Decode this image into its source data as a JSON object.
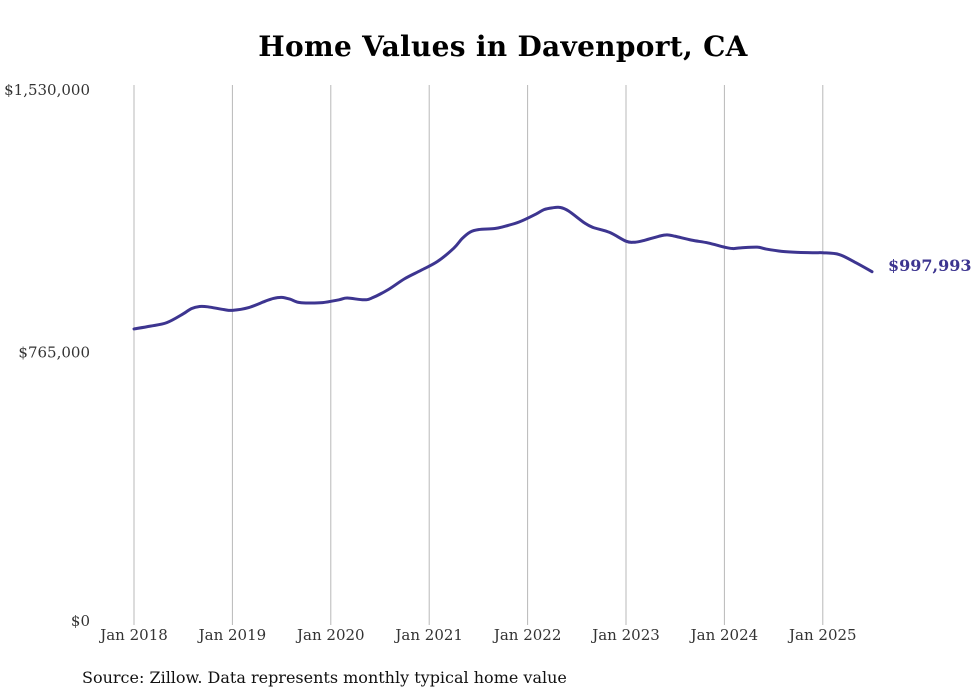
{
  "title": "Home Values in Davenport, CA",
  "source": "Source: Zillow. Data represents monthly typical home value",
  "colors": {
    "line": "#3d3590",
    "grid": "#b8b8b8",
    "text": "#333333"
  },
  "chart_data": {
    "type": "line",
    "title": "Home Values in Davenport, CA",
    "xlabel": "",
    "ylabel": "",
    "ylim": [
      0,
      1530000
    ],
    "grid": "vertical",
    "y_ticks": [
      {
        "value": 1530000,
        "label": "$1,530,000"
      },
      {
        "value": 765000,
        "label": "$765,000"
      },
      {
        "value": 0,
        "label": "$0"
      }
    ],
    "x_ticks": [
      {
        "date": "2018-01",
        "label": "Jan 2018"
      },
      {
        "date": "2019-01",
        "label": "Jan 2019"
      },
      {
        "date": "2020-01",
        "label": "Jan 2020"
      },
      {
        "date": "2021-01",
        "label": "Jan 2021"
      },
      {
        "date": "2022-01",
        "label": "Jan 2022"
      },
      {
        "date": "2023-01",
        "label": "Jan 2023"
      },
      {
        "date": "2024-01",
        "label": "Jan 2024"
      },
      {
        "date": "2025-01",
        "label": "Jan 2025"
      }
    ],
    "end_label": "$997,993",
    "series": [
      {
        "points": [
          [
            "2018-01",
            835000
          ],
          [
            "2018-03",
            843000
          ],
          [
            "2018-05",
            853000
          ],
          [
            "2018-07",
            878000
          ],
          [
            "2018-08",
            893000
          ],
          [
            "2018-09",
            899000
          ],
          [
            "2018-10",
            898000
          ],
          [
            "2018-12",
            890000
          ],
          [
            "2019-01",
            888000
          ],
          [
            "2019-03",
            896000
          ],
          [
            "2019-05",
            914000
          ],
          [
            "2019-06",
            922000
          ],
          [
            "2019-07",
            925000
          ],
          [
            "2019-08",
            920000
          ],
          [
            "2019-09",
            911000
          ],
          [
            "2019-10",
            909000
          ],
          [
            "2019-12",
            910000
          ],
          [
            "2020-02",
            918000
          ],
          [
            "2020-03",
            923000
          ],
          [
            "2020-05",
            918000
          ],
          [
            "2020-06",
            923000
          ],
          [
            "2020-08",
            947000
          ],
          [
            "2020-10",
            978000
          ],
          [
            "2020-12",
            1002000
          ],
          [
            "2021-02",
            1027000
          ],
          [
            "2021-04",
            1065000
          ],
          [
            "2021-05",
            1092000
          ],
          [
            "2021-06",
            1111000
          ],
          [
            "2021-07",
            1118000
          ],
          [
            "2021-09",
            1121000
          ],
          [
            "2021-10",
            1126000
          ],
          [
            "2021-12",
            1140000
          ],
          [
            "2022-02",
            1162000
          ],
          [
            "2022-03",
            1175000
          ],
          [
            "2022-04",
            1180000
          ],
          [
            "2022-05",
            1181000
          ],
          [
            "2022-06",
            1171000
          ],
          [
            "2022-08",
            1136000
          ],
          [
            "2022-09",
            1124000
          ],
          [
            "2022-11",
            1110000
          ],
          [
            "2023-01",
            1085000
          ],
          [
            "2023-02",
            1082000
          ],
          [
            "2023-03",
            1086000
          ],
          [
            "2023-05",
            1099000
          ],
          [
            "2023-06",
            1103000
          ],
          [
            "2023-07",
            1099000
          ],
          [
            "2023-09",
            1088000
          ],
          [
            "2023-11",
            1080000
          ],
          [
            "2024-01",
            1068000
          ],
          [
            "2024-02",
            1064000
          ],
          [
            "2024-03",
            1066000
          ],
          [
            "2024-05",
            1068000
          ],
          [
            "2024-06",
            1063000
          ],
          [
            "2024-08",
            1056000
          ],
          [
            "2024-10",
            1053000
          ],
          [
            "2024-12",
            1052000
          ],
          [
            "2025-01",
            1052000
          ],
          [
            "2025-03",
            1047000
          ],
          [
            "2025-05",
            1024000
          ],
          [
            "2025-07",
            997993
          ]
        ]
      }
    ]
  }
}
